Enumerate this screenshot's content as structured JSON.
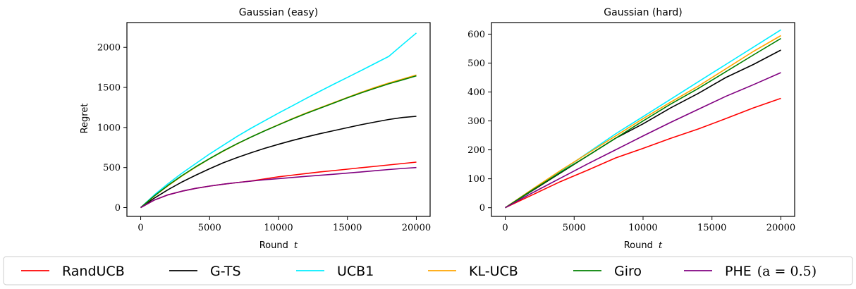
{
  "chart_data": [
    {
      "type": "line",
      "title": "Gaussian (easy)",
      "xlabel": "Round",
      "xlabel_var": "t",
      "ylabel": "Regret",
      "xlim": [
        -1000,
        21000
      ],
      "ylim": [
        -110,
        2310
      ],
      "xticks": [
        0,
        5000,
        10000,
        15000,
        20000
      ],
      "yticks": [
        0,
        500,
        1000,
        1500,
        2000
      ],
      "grid": false,
      "series": [
        {
          "name": "RandUCB",
          "color": "#ff0000",
          "x": [
            0,
            1000,
            2000,
            3000,
            4000,
            5000,
            6000,
            7000,
            8000,
            9000,
            10000,
            11000,
            12000,
            13000,
            14000,
            15000,
            16000,
            17000,
            18000,
            19000,
            20000
          ],
          "values": [
            0,
            95,
            160,
            205,
            240,
            268,
            292,
            312,
            332,
            358,
            385,
            405,
            425,
            445,
            462,
            480,
            498,
            515,
            532,
            550,
            568
          ]
        },
        {
          "name": "G-TS",
          "color": "#000000",
          "x": [
            0,
            1000,
            2000,
            3000,
            4000,
            5000,
            6000,
            7000,
            8000,
            9000,
            10000,
            11000,
            12000,
            13000,
            14000,
            15000,
            16000,
            17000,
            18000,
            19000,
            20000
          ],
          "values": [
            0,
            120,
            225,
            320,
            405,
            485,
            560,
            625,
            685,
            740,
            790,
            838,
            882,
            922,
            960,
            998,
            1035,
            1068,
            1100,
            1125,
            1140
          ]
        },
        {
          "name": "UCB1",
          "color": "#00eeff",
          "x": [
            0,
            1000,
            2000,
            3000,
            4000,
            5000,
            6000,
            7000,
            8000,
            9000,
            10000,
            11000,
            12000,
            13000,
            14000,
            15000,
            16000,
            17000,
            18000,
            19000,
            20000
          ],
          "values": [
            0,
            160,
            300,
            430,
            550,
            670,
            780,
            890,
            990,
            1085,
            1180,
            1270,
            1362,
            1452,
            1540,
            1625,
            1712,
            1800,
            1888,
            2035,
            2180
          ]
        },
        {
          "name": "KL-UCB",
          "color": "#ffa500",
          "x": [
            0,
            1000,
            2000,
            3000,
            4000,
            5000,
            6000,
            7000,
            8000,
            9000,
            10000,
            11000,
            12000,
            13000,
            14000,
            15000,
            16000,
            17000,
            18000,
            19000,
            20000
          ],
          "values": [
            0,
            145,
            275,
            395,
            505,
            610,
            705,
            795,
            880,
            960,
            1035,
            1110,
            1180,
            1245,
            1310,
            1375,
            1440,
            1500,
            1555,
            1605,
            1655
          ]
        },
        {
          "name": "Giro",
          "color": "#008000",
          "x": [
            0,
            1000,
            2000,
            3000,
            4000,
            5000,
            6000,
            7000,
            8000,
            9000,
            10000,
            11000,
            12000,
            13000,
            14000,
            15000,
            16000,
            17000,
            18000,
            19000,
            20000
          ],
          "values": [
            0,
            148,
            280,
            400,
            510,
            612,
            708,
            798,
            880,
            958,
            1032,
            1105,
            1175,
            1240,
            1305,
            1370,
            1432,
            1490,
            1545,
            1595,
            1645
          ]
        },
        {
          "name": "PHE (a = 0.5)",
          "color": "#800080",
          "x": [
            0,
            1000,
            2000,
            3000,
            4000,
            5000,
            6000,
            7000,
            8000,
            9000,
            10000,
            11000,
            12000,
            13000,
            14000,
            15000,
            16000,
            17000,
            18000,
            19000,
            20000
          ],
          "values": [
            0,
            95,
            160,
            205,
            240,
            268,
            292,
            312,
            330,
            348,
            362,
            376,
            390,
            403,
            416,
            430,
            445,
            460,
            475,
            488,
            500
          ]
        }
      ]
    },
    {
      "type": "line",
      "title": "Gaussian (hard)",
      "xlabel": "Round",
      "xlabel_var": "t",
      "ylabel": "",
      "xlim": [
        -1000,
        21000
      ],
      "ylim": [
        -30,
        640
      ],
      "xticks": [
        0,
        5000,
        10000,
        15000,
        20000
      ],
      "yticks": [
        0,
        100,
        200,
        300,
        400,
        500,
        600
      ],
      "grid": false,
      "series": [
        {
          "name": "RandUCB",
          "color": "#ff0000",
          "x": [
            0,
            2000,
            4000,
            6000,
            8000,
            10000,
            12000,
            14000,
            16000,
            18000,
            20000
          ],
          "values": [
            0,
            45,
            90,
            130,
            172,
            205,
            240,
            272,
            308,
            345,
            378
          ]
        },
        {
          "name": "G-TS",
          "color": "#000000",
          "x": [
            0,
            2000,
            4000,
            6000,
            8000,
            10000,
            12000,
            14000,
            16000,
            18000,
            20000
          ],
          "values": [
            0,
            60,
            120,
            180,
            240,
            290,
            345,
            395,
            450,
            495,
            545
          ]
        },
        {
          "name": "UCB1",
          "color": "#00eeff",
          "x": [
            0,
            2000,
            4000,
            6000,
            8000,
            10000,
            12000,
            14000,
            16000,
            18000,
            20000
          ],
          "values": [
            0,
            62,
            125,
            190,
            255,
            315,
            375,
            435,
            495,
            555,
            615
          ]
        },
        {
          "name": "KL-UCB",
          "color": "#ffa500",
          "x": [
            0,
            2000,
            4000,
            6000,
            8000,
            10000,
            12000,
            14000,
            16000,
            18000,
            20000
          ],
          "values": [
            0,
            65,
            128,
            188,
            248,
            308,
            365,
            420,
            480,
            540,
            595
          ]
        },
        {
          "name": "Giro",
          "color": "#008000",
          "x": [
            0,
            2000,
            4000,
            6000,
            8000,
            10000,
            12000,
            14000,
            16000,
            18000,
            20000
          ],
          "values": [
            0,
            62,
            122,
            180,
            240,
            300,
            358,
            412,
            470,
            528,
            585
          ]
        },
        {
          "name": "PHE (a = 0.5)",
          "color": "#800080",
          "x": [
            0,
            2000,
            4000,
            6000,
            8000,
            10000,
            12000,
            14000,
            16000,
            18000,
            20000
          ],
          "values": [
            0,
            52,
            102,
            152,
            200,
            248,
            295,
            340,
            385,
            425,
            467
          ]
        }
      ]
    }
  ],
  "legend": {
    "placement": "bottom",
    "items": [
      {
        "label": "RandUCB",
        "color": "#ff0000"
      },
      {
        "label": "G-TS",
        "color": "#000000"
      },
      {
        "label": "UCB1",
        "color": "#00eeff"
      },
      {
        "label": "KL-UCB",
        "color": "#ffa500"
      },
      {
        "label": "Giro",
        "color": "#008000"
      },
      {
        "label": "PHE",
        "math": "(a = 0.5)",
        "color": "#800080"
      }
    ]
  }
}
